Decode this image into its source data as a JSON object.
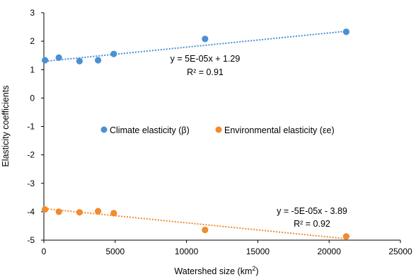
{
  "chart_data": {
    "type": "scatter",
    "xlabel": "Watershed size (km",
    "xlabel_superscript": "2",
    "xlabel_suffix": ")",
    "ylabel": "Elasticity coefficients",
    "xlim": [
      0,
      25000
    ],
    "ylim": [
      -5,
      3
    ],
    "x_ticks": [
      0,
      5000,
      10000,
      15000,
      20000,
      25000
    ],
    "y_ticks": [
      3,
      2,
      1,
      0,
      -1,
      -2,
      -3,
      -4,
      -5
    ],
    "grid": false,
    "legend_position": "center",
    "series": [
      {
        "name": "Climate elasticity (β)",
        "color": "#4a90d4",
        "points": [
          {
            "x": 80,
            "y": 1.33
          },
          {
            "x": 1050,
            "y": 1.42
          },
          {
            "x": 2500,
            "y": 1.3
          },
          {
            "x": 3800,
            "y": 1.33
          },
          {
            "x": 4900,
            "y": 1.55
          },
          {
            "x": 11300,
            "y": 2.08
          },
          {
            "x": 21200,
            "y": 2.33
          }
        ],
        "trendline": {
          "slope": 5e-05,
          "intercept": 1.29,
          "equation": "y = 5E-05x + 1.29",
          "r2": "R² = 0.91"
        }
      },
      {
        "name": "Environmental elasticity (εe)",
        "color": "#f28a2e",
        "points": [
          {
            "x": 80,
            "y": -3.92
          },
          {
            "x": 1050,
            "y": -4.0
          },
          {
            "x": 2500,
            "y": -4.02
          },
          {
            "x": 3800,
            "y": -3.98
          },
          {
            "x": 4900,
            "y": -4.05
          },
          {
            "x": 11300,
            "y": -4.64
          },
          {
            "x": 21200,
            "y": -4.87
          }
        ],
        "trendline": {
          "slope": -5e-05,
          "intercept": -3.89,
          "equation": "y = -5E-05x - 3.89",
          "r2": "R² = 0.92"
        }
      }
    ]
  }
}
